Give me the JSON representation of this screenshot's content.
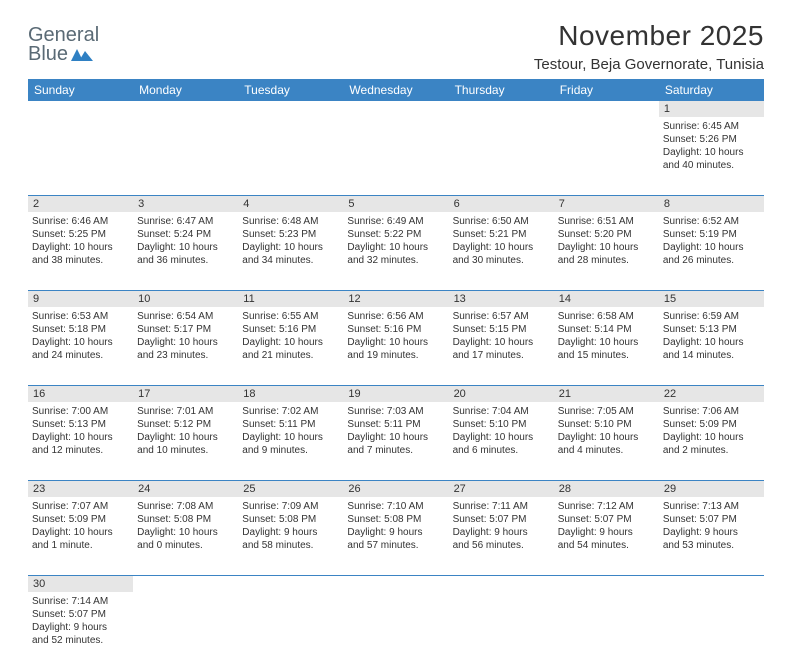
{
  "logo": {
    "line1": "General",
    "line2": "Blue"
  },
  "title": "November 2025",
  "location": "Testour, Beja Governorate, Tunisia",
  "headers": [
    "Sunday",
    "Monday",
    "Tuesday",
    "Wednesday",
    "Thursday",
    "Friday",
    "Saturday"
  ],
  "colors": {
    "header_bg": "#3b84c4",
    "header_fg": "#ffffff",
    "daynum_bg": "#e6e6e6",
    "rule": "#3b84c4",
    "text": "#333333",
    "logo_text": "#5a6a75",
    "flag": "#2f80c3"
  },
  "weeks": [
    [
      null,
      null,
      null,
      null,
      null,
      null,
      {
        "n": "1",
        "sr": "Sunrise: 6:45 AM",
        "ss": "Sunset: 5:26 PM",
        "d1": "Daylight: 10 hours",
        "d2": "and 40 minutes."
      }
    ],
    [
      {
        "n": "2",
        "sr": "Sunrise: 6:46 AM",
        "ss": "Sunset: 5:25 PM",
        "d1": "Daylight: 10 hours",
        "d2": "and 38 minutes."
      },
      {
        "n": "3",
        "sr": "Sunrise: 6:47 AM",
        "ss": "Sunset: 5:24 PM",
        "d1": "Daylight: 10 hours",
        "d2": "and 36 minutes."
      },
      {
        "n": "4",
        "sr": "Sunrise: 6:48 AM",
        "ss": "Sunset: 5:23 PM",
        "d1": "Daylight: 10 hours",
        "d2": "and 34 minutes."
      },
      {
        "n": "5",
        "sr": "Sunrise: 6:49 AM",
        "ss": "Sunset: 5:22 PM",
        "d1": "Daylight: 10 hours",
        "d2": "and 32 minutes."
      },
      {
        "n": "6",
        "sr": "Sunrise: 6:50 AM",
        "ss": "Sunset: 5:21 PM",
        "d1": "Daylight: 10 hours",
        "d2": "and 30 minutes."
      },
      {
        "n": "7",
        "sr": "Sunrise: 6:51 AM",
        "ss": "Sunset: 5:20 PM",
        "d1": "Daylight: 10 hours",
        "d2": "and 28 minutes."
      },
      {
        "n": "8",
        "sr": "Sunrise: 6:52 AM",
        "ss": "Sunset: 5:19 PM",
        "d1": "Daylight: 10 hours",
        "d2": "and 26 minutes."
      }
    ],
    [
      {
        "n": "9",
        "sr": "Sunrise: 6:53 AM",
        "ss": "Sunset: 5:18 PM",
        "d1": "Daylight: 10 hours",
        "d2": "and 24 minutes."
      },
      {
        "n": "10",
        "sr": "Sunrise: 6:54 AM",
        "ss": "Sunset: 5:17 PM",
        "d1": "Daylight: 10 hours",
        "d2": "and 23 minutes."
      },
      {
        "n": "11",
        "sr": "Sunrise: 6:55 AM",
        "ss": "Sunset: 5:16 PM",
        "d1": "Daylight: 10 hours",
        "d2": "and 21 minutes."
      },
      {
        "n": "12",
        "sr": "Sunrise: 6:56 AM",
        "ss": "Sunset: 5:16 PM",
        "d1": "Daylight: 10 hours",
        "d2": "and 19 minutes."
      },
      {
        "n": "13",
        "sr": "Sunrise: 6:57 AM",
        "ss": "Sunset: 5:15 PM",
        "d1": "Daylight: 10 hours",
        "d2": "and 17 minutes."
      },
      {
        "n": "14",
        "sr": "Sunrise: 6:58 AM",
        "ss": "Sunset: 5:14 PM",
        "d1": "Daylight: 10 hours",
        "d2": "and 15 minutes."
      },
      {
        "n": "15",
        "sr": "Sunrise: 6:59 AM",
        "ss": "Sunset: 5:13 PM",
        "d1": "Daylight: 10 hours",
        "d2": "and 14 minutes."
      }
    ],
    [
      {
        "n": "16",
        "sr": "Sunrise: 7:00 AM",
        "ss": "Sunset: 5:13 PM",
        "d1": "Daylight: 10 hours",
        "d2": "and 12 minutes."
      },
      {
        "n": "17",
        "sr": "Sunrise: 7:01 AM",
        "ss": "Sunset: 5:12 PM",
        "d1": "Daylight: 10 hours",
        "d2": "and 10 minutes."
      },
      {
        "n": "18",
        "sr": "Sunrise: 7:02 AM",
        "ss": "Sunset: 5:11 PM",
        "d1": "Daylight: 10 hours",
        "d2": "and 9 minutes."
      },
      {
        "n": "19",
        "sr": "Sunrise: 7:03 AM",
        "ss": "Sunset: 5:11 PM",
        "d1": "Daylight: 10 hours",
        "d2": "and 7 minutes."
      },
      {
        "n": "20",
        "sr": "Sunrise: 7:04 AM",
        "ss": "Sunset: 5:10 PM",
        "d1": "Daylight: 10 hours",
        "d2": "and 6 minutes."
      },
      {
        "n": "21",
        "sr": "Sunrise: 7:05 AM",
        "ss": "Sunset: 5:10 PM",
        "d1": "Daylight: 10 hours",
        "d2": "and 4 minutes."
      },
      {
        "n": "22",
        "sr": "Sunrise: 7:06 AM",
        "ss": "Sunset: 5:09 PM",
        "d1": "Daylight: 10 hours",
        "d2": "and 2 minutes."
      }
    ],
    [
      {
        "n": "23",
        "sr": "Sunrise: 7:07 AM",
        "ss": "Sunset: 5:09 PM",
        "d1": "Daylight: 10 hours",
        "d2": "and 1 minute."
      },
      {
        "n": "24",
        "sr": "Sunrise: 7:08 AM",
        "ss": "Sunset: 5:08 PM",
        "d1": "Daylight: 10 hours",
        "d2": "and 0 minutes."
      },
      {
        "n": "25",
        "sr": "Sunrise: 7:09 AM",
        "ss": "Sunset: 5:08 PM",
        "d1": "Daylight: 9 hours",
        "d2": "and 58 minutes."
      },
      {
        "n": "26",
        "sr": "Sunrise: 7:10 AM",
        "ss": "Sunset: 5:08 PM",
        "d1": "Daylight: 9 hours",
        "d2": "and 57 minutes."
      },
      {
        "n": "27",
        "sr": "Sunrise: 7:11 AM",
        "ss": "Sunset: 5:07 PM",
        "d1": "Daylight: 9 hours",
        "d2": "and 56 minutes."
      },
      {
        "n": "28",
        "sr": "Sunrise: 7:12 AM",
        "ss": "Sunset: 5:07 PM",
        "d1": "Daylight: 9 hours",
        "d2": "and 54 minutes."
      },
      {
        "n": "29",
        "sr": "Sunrise: 7:13 AM",
        "ss": "Sunset: 5:07 PM",
        "d1": "Daylight: 9 hours",
        "d2": "and 53 minutes."
      }
    ],
    [
      {
        "n": "30",
        "sr": "Sunrise: 7:14 AM",
        "ss": "Sunset: 5:07 PM",
        "d1": "Daylight: 9 hours",
        "d2": "and 52 minutes."
      },
      null,
      null,
      null,
      null,
      null,
      null
    ]
  ]
}
